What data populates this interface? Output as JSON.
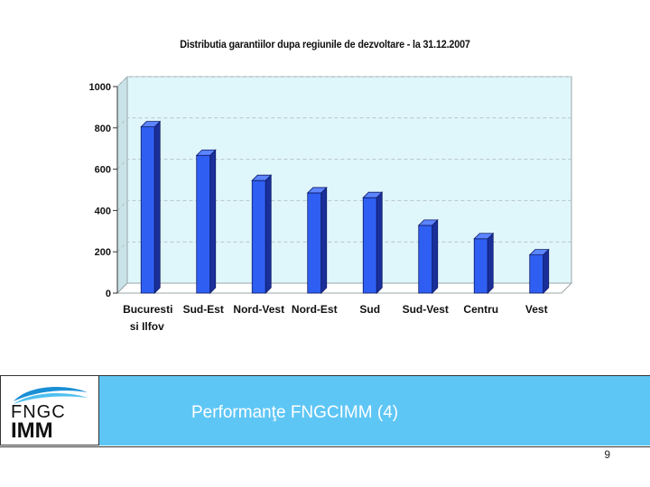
{
  "chart_data": {
    "type": "bar",
    "title": "Distributia garantiilor dupa regiunile de dezvoltare - la 31.12.2007",
    "xlabel": "",
    "ylabel": "",
    "categories": [
      "Bucuresti si Ilfov",
      "Sud-Est",
      "Nord-Vest",
      "Nord-Est",
      "Sud",
      "Sud-Vest",
      "Centru",
      "Vest"
    ],
    "values": [
      805,
      667,
      545,
      485,
      462,
      328,
      263,
      185
    ],
    "ylim": [
      0,
      1000
    ],
    "yticks": [
      "0",
      "200",
      "400",
      "600",
      "800",
      "1000"
    ],
    "grid": true,
    "legend": "none",
    "colors": {
      "bar_front": "#2f5ff2",
      "bar_top": "#5b84ff",
      "bar_side": "#1a2f9a",
      "plot_bg": "#dff7fb",
      "grid": "#b8c4c8"
    }
  },
  "footer": {
    "title": "Performanţe FNGCIMM (4)",
    "page_number": "9",
    "band_color": "#5ec6f5"
  },
  "logo": {
    "line1": "FNGC",
    "line2": "IMM"
  }
}
